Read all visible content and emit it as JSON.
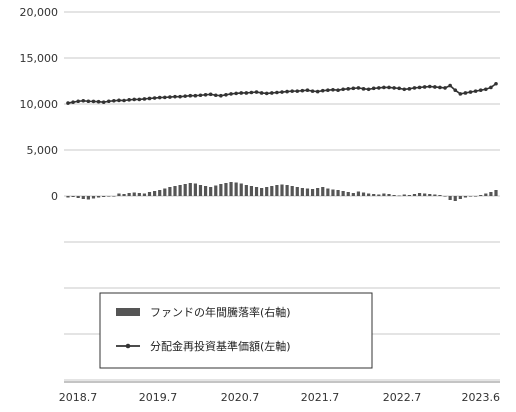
{
  "chart_data": {
    "type": "bar+line",
    "title": "",
    "x_tick_labels": [
      "2018.7",
      "2019.7",
      "2020.7",
      "2021.7",
      "2022.7",
      "2023.6"
    ],
    "left_y_ticks": [
      "20,000",
      "15,000",
      "10,000",
      "5,000",
      "0"
    ],
    "left_ylim": [
      0,
      20000
    ],
    "grid": true,
    "legend_position": "lower-left inside plot",
    "legend": [
      {
        "label": "ファンドの年間騰落率(右軸)",
        "marker": "bar",
        "color": "#555555"
      },
      {
        "label": "分配金再投資基準価額(左軸)",
        "marker": "line-dot",
        "color": "#333333"
      }
    ],
    "series": [
      {
        "name": "分配金再投資基準価額(左軸)",
        "type": "line",
        "axis": "left",
        "color": "#333333",
        "values": [
          10100,
          10200,
          10300,
          10350,
          10300,
          10280,
          10250,
          10200,
          10300,
          10350,
          10400,
          10380,
          10450,
          10500,
          10500,
          10550,
          10600,
          10650,
          10700,
          10720,
          10750,
          10800,
          10800,
          10850,
          10900,
          10900,
          10950,
          11000,
          11050,
          10950,
          10900,
          11000,
          11100,
          11150,
          11200,
          11200,
          11250,
          11300,
          11200,
          11150,
          11200,
          11250,
          11300,
          11350,
          11400,
          11400,
          11450,
          11500,
          11400,
          11350,
          11450,
          11500,
          11550,
          11500,
          11600,
          11650,
          11700,
          11750,
          11650,
          11600,
          11700,
          11750,
          11800,
          11800,
          11750,
          11700,
          11600,
          11650,
          11750,
          11800,
          11850,
          11900,
          11850,
          11800,
          11750,
          12000,
          11500,
          11100,
          11200,
          11300,
          11400,
          11500,
          11600,
          11800,
          12200
        ]
      },
      {
        "name": "ファンドの年間騰落率(右軸)",
        "type": "bar",
        "axis": "right",
        "color": "#555555",
        "values": [
          -3,
          -2,
          -4,
          -6,
          -7,
          -5,
          -3,
          -2,
          -1,
          0,
          5,
          4,
          6,
          7,
          6,
          5,
          8,
          10,
          12,
          15,
          18,
          20,
          22,
          24,
          26,
          25,
          22,
          20,
          18,
          21,
          24,
          26,
          28,
          27,
          25,
          22,
          20,
          18,
          16,
          18,
          20,
          22,
          23,
          22,
          20,
          18,
          16,
          15,
          14,
          16,
          18,
          15,
          13,
          12,
          10,
          8,
          6,
          9,
          7,
          5,
          4,
          3,
          5,
          4,
          2,
          1,
          3,
          2,
          4,
          6,
          5,
          4,
          3,
          2,
          0,
          -8,
          -10,
          -6,
          -3,
          -1,
          0,
          2,
          5,
          8,
          12
        ]
      }
    ]
  }
}
